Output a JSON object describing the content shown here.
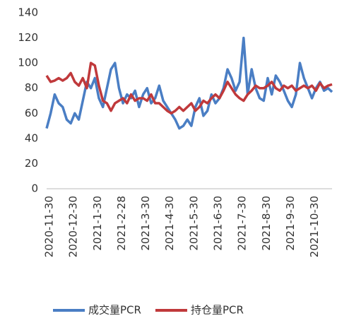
{
  "chart_data": {
    "type": "line",
    "categories": [
      "2020-11-30",
      null,
      null,
      null,
      null,
      null,
      "2020-12-30",
      null,
      null,
      null,
      null,
      null,
      "2021-1-30",
      null,
      null,
      null,
      null,
      null,
      "2021-2-28",
      null,
      null,
      null,
      null,
      null,
      "2021-3-30",
      null,
      null,
      null,
      null,
      null,
      "2021-4-30",
      null,
      null,
      null,
      null,
      null,
      "2021-5-30",
      null,
      null,
      null,
      null,
      null,
      "2021-6-30",
      null,
      null,
      null,
      null,
      null,
      "2021-7-30",
      null,
      null,
      null,
      null,
      null,
      "2021-8-30",
      null,
      null,
      null,
      null,
      null,
      "2021-9-30",
      null,
      null,
      null,
      null,
      null,
      "2021-10-30",
      null,
      null,
      null,
      null,
      null
    ],
    "series": [
      {
        "name": "成交量PCR",
        "color": "#4a7ec4",
        "values": [
          48,
          60,
          75,
          68,
          65,
          55,
          52,
          60,
          55,
          70,
          85,
          80,
          88,
          72,
          65,
          80,
          95,
          100,
          80,
          68,
          75,
          72,
          78,
          65,
          75,
          80,
          68,
          72,
          82,
          70,
          65,
          60,
          55,
          48,
          50,
          55,
          50,
          65,
          72,
          58,
          62,
          75,
          68,
          72,
          80,
          95,
          88,
          78,
          85,
          120,
          75,
          95,
          80,
          72,
          70,
          88,
          75,
          90,
          85,
          78,
          70,
          65,
          75,
          100,
          88,
          80,
          72,
          80,
          85,
          78,
          80,
          77
        ]
      },
      {
        "name": "持仓量PCR",
        "color": "#c0393b",
        "values": [
          90,
          85,
          86,
          88,
          86,
          88,
          92,
          85,
          82,
          88,
          80,
          100,
          98,
          82,
          70,
          68,
          62,
          68,
          70,
          72,
          68,
          75,
          70,
          72,
          72,
          70,
          75,
          68,
          68,
          65,
          62,
          60,
          62,
          65,
          62,
          65,
          68,
          62,
          65,
          70,
          68,
          72,
          75,
          72,
          78,
          85,
          80,
          75,
          72,
          70,
          75,
          78,
          82,
          80,
          80,
          82,
          85,
          80,
          78,
          82,
          80,
          82,
          78,
          80,
          82,
          80,
          82,
          78,
          84,
          80,
          82,
          83
        ]
      }
    ],
    "ylim": [
      0,
      140
    ],
    "yticks": [
      0,
      20,
      40,
      60,
      80,
      100,
      120,
      140
    ],
    "legend": "bottom"
  }
}
